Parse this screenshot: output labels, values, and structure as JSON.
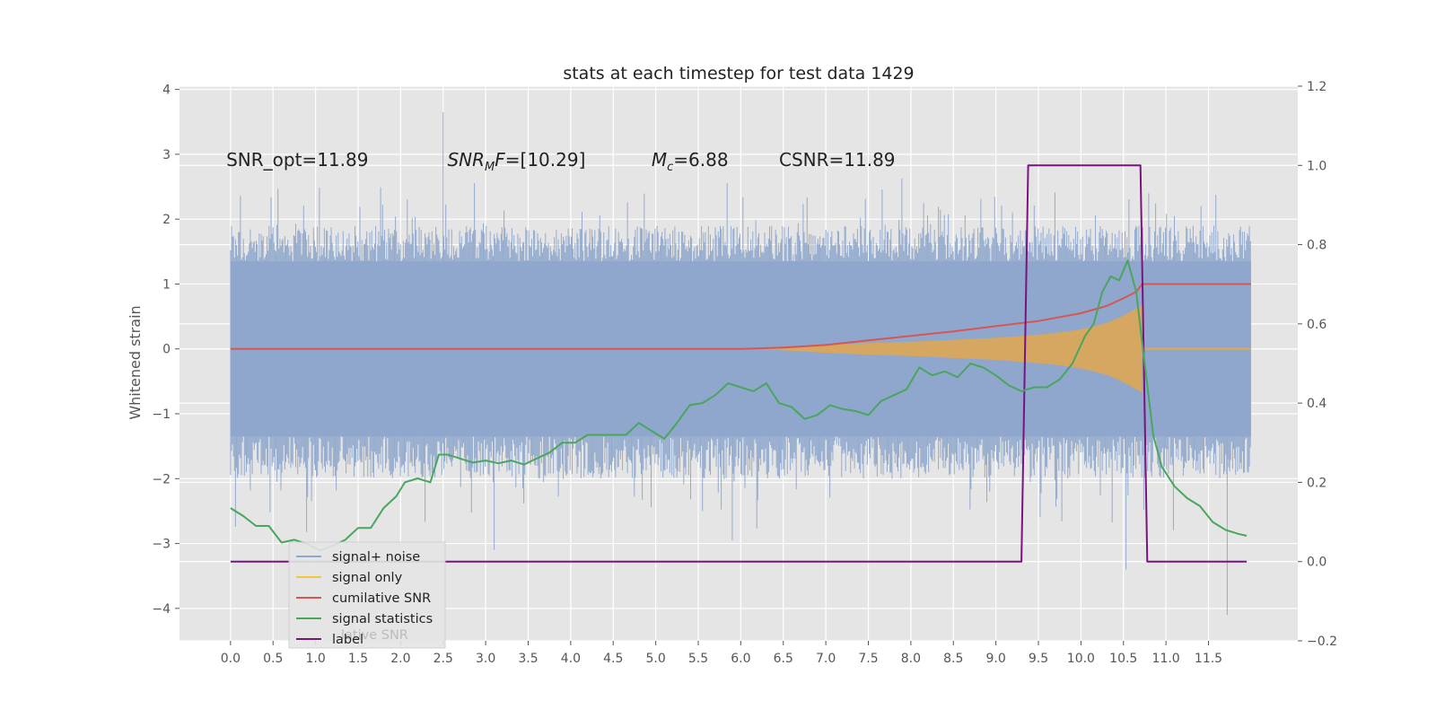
{
  "chart_data": {
    "type": "line",
    "title": "stats at each timestep for test data 1429",
    "ylabel": "Whitened strain",
    "y2label": "",
    "xlim": [
      -0.6,
      12.55
    ],
    "ylim": [
      -4.5,
      4.05
    ],
    "y2lim": [
      -0.2,
      1.2
    ],
    "x_ticks": [
      0.0,
      0.5,
      1.0,
      1.5,
      2.0,
      2.5,
      3.0,
      3.5,
      4.0,
      4.5,
      5.0,
      5.5,
      6.0,
      6.5,
      7.0,
      7.5,
      8.0,
      8.5,
      9.0,
      9.5,
      10.0,
      10.5,
      11.0,
      11.5
    ],
    "x_tick_labels": [
      "0.0",
      "0.5",
      "1.0",
      "1.5",
      "2.0",
      "2.5",
      "3.0",
      "3.5",
      "4.0",
      "4.5",
      "5.0",
      "5.5",
      "6.0",
      "6.5",
      "7.0",
      "7.5",
      "8.0",
      "8.5",
      "9.0",
      "9.5",
      "10.0",
      "10.5",
      "11.0",
      "11.5"
    ],
    "y_ticks": [
      4,
      3,
      2,
      1,
      0,
      -1,
      -2,
      -3,
      -4
    ],
    "y_tick_labels": [
      "4",
      "3",
      "2",
      "1",
      "0",
      "−1",
      "−2",
      "−3",
      "−4"
    ],
    "y2_ticks": [
      1.2,
      1.0,
      0.8,
      0.6,
      0.4,
      0.2,
      0.0,
      -0.2
    ],
    "y2_tick_labels": [
      "1.2",
      "1.0",
      "0.8",
      "0.6",
      "0.4",
      "0.2",
      "0.0",
      "−0.2"
    ],
    "grid": true,
    "legend_position": "lower-left",
    "annotations": [
      {
        "kind": "plain",
        "text": "SNR_opt=11.89"
      },
      {
        "kind": "snrmf",
        "main": "SNR",
        "sub": "M",
        "rest": "F=[10.29]"
      },
      {
        "kind": "mc",
        "main": "M",
        "sub": "c",
        "rest": "=6.88"
      },
      {
        "kind": "plain",
        "text": "CSNR=11.89"
      }
    ],
    "legend_ghost_text": "lative SNR",
    "series": [
      {
        "name": "signal+ noise",
        "axis": "left",
        "color": "#8fa6cc",
        "style": "noise",
        "x_range": [
          0.0,
          12.0
        ],
        "envelope_upper": [
          1.35,
          1.9
        ],
        "envelope_lower": [
          -1.35,
          -2.0
        ],
        "peak_max": 3.65,
        "peak_min": -4.1
      },
      {
        "name": "signal only",
        "axis": "left",
        "color": "#f5c342",
        "fill_color": "#d9a75a",
        "style": "chirp",
        "x": [
          6.2,
          6.6,
          7.0,
          7.5,
          8.0,
          8.5,
          9.0,
          9.3,
          9.6,
          9.9,
          10.1,
          10.3,
          10.45,
          10.55,
          10.65,
          10.72
        ],
        "envelope": [
          0.0,
          0.03,
          0.06,
          0.09,
          0.11,
          0.14,
          0.17,
          0.2,
          0.23,
          0.28,
          0.33,
          0.4,
          0.48,
          0.55,
          0.62,
          0.68
        ],
        "tail": 0.02
      },
      {
        "name": "cumilative SNR",
        "axis": "left",
        "color": "#d65656",
        "x": [
          0.0,
          6.0,
          6.5,
          7.0,
          7.5,
          8.0,
          8.5,
          9.0,
          9.5,
          10.0,
          10.3,
          10.5,
          10.65,
          10.72,
          12.0
        ],
        "y": [
          0.0,
          0.0,
          0.02,
          0.06,
          0.13,
          0.2,
          0.27,
          0.35,
          0.43,
          0.55,
          0.66,
          0.78,
          0.88,
          1.0,
          1.0
        ]
      },
      {
        "name": "signal statistics",
        "axis": "right",
        "color": "#4aa55e",
        "x": [
          0.0,
          0.15,
          0.3,
          0.45,
          0.6,
          0.75,
          0.9,
          1.05,
          1.2,
          1.35,
          1.5,
          1.65,
          1.8,
          1.95,
          2.05,
          2.2,
          2.35,
          2.45,
          2.55,
          2.7,
          2.85,
          3.0,
          3.15,
          3.3,
          3.45,
          3.6,
          3.75,
          3.9,
          4.05,
          4.2,
          4.35,
          4.5,
          4.65,
          4.8,
          4.95,
          5.1,
          5.25,
          5.4,
          5.55,
          5.7,
          5.85,
          6.0,
          6.15,
          6.3,
          6.45,
          6.6,
          6.75,
          6.9,
          7.05,
          7.2,
          7.35,
          7.5,
          7.65,
          7.8,
          7.95,
          8.1,
          8.25,
          8.4,
          8.55,
          8.7,
          8.85,
          9.0,
          9.15,
          9.3,
          9.45,
          9.6,
          9.75,
          9.9,
          10.05,
          10.15,
          10.25,
          10.35,
          10.45,
          10.55,
          10.65,
          10.75,
          10.85,
          10.95,
          11.1,
          11.25,
          11.4,
          11.55,
          11.7,
          11.85,
          11.95
        ],
        "y": [
          0.135,
          0.115,
          0.09,
          0.09,
          0.048,
          0.055,
          0.045,
          0.028,
          0.04,
          0.055,
          0.085,
          0.085,
          0.135,
          0.165,
          0.2,
          0.21,
          0.2,
          0.27,
          0.27,
          0.26,
          0.25,
          0.255,
          0.248,
          0.255,
          0.245,
          0.26,
          0.275,
          0.3,
          0.3,
          0.32,
          0.32,
          0.32,
          0.32,
          0.35,
          0.33,
          0.31,
          0.35,
          0.395,
          0.4,
          0.42,
          0.45,
          0.44,
          0.43,
          0.45,
          0.4,
          0.39,
          0.36,
          0.37,
          0.395,
          0.385,
          0.38,
          0.37,
          0.405,
          0.42,
          0.435,
          0.49,
          0.47,
          0.48,
          0.465,
          0.5,
          0.49,
          0.47,
          0.445,
          0.43,
          0.44,
          0.44,
          0.46,
          0.5,
          0.57,
          0.6,
          0.68,
          0.72,
          0.71,
          0.76,
          0.68,
          0.5,
          0.32,
          0.24,
          0.19,
          0.16,
          0.14,
          0.1,
          0.08,
          0.07,
          0.065
        ]
      },
      {
        "name": "label",
        "axis": "right",
        "color": "#7a1380",
        "x": [
          0.0,
          9.3,
          9.38,
          10.7,
          10.78,
          11.95
        ],
        "y": [
          0.0,
          0.0,
          1.0,
          1.0,
          0.0,
          0.0
        ]
      }
    ]
  }
}
